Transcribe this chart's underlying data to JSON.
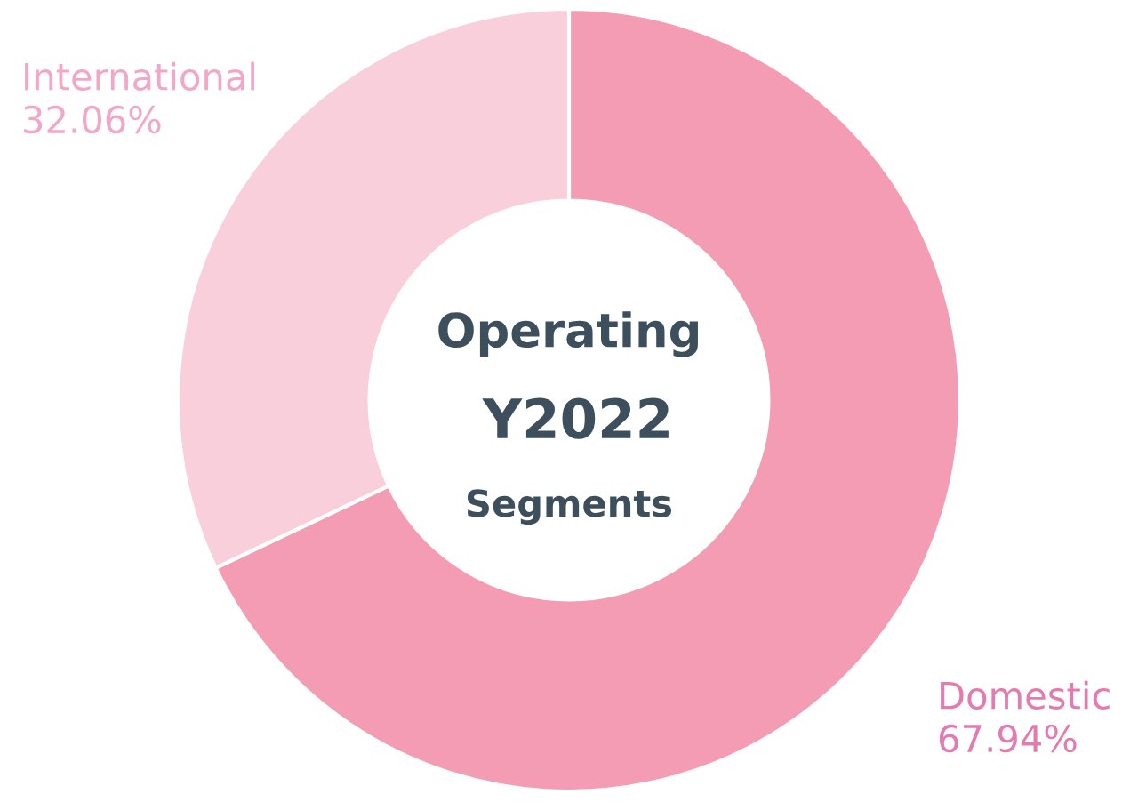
{
  "chart_data": {
    "type": "donut",
    "categories": [
      "Domestic",
      "International"
    ],
    "values": [
      67.94,
      32.06
    ],
    "value_labels": [
      "67.94%",
      "32.06%"
    ],
    "colors": [
      "#f49cb4",
      "#f9cfdc"
    ],
    "annotations": [
      "Operating",
      "Y2022",
      "Segments"
    ]
  }
}
